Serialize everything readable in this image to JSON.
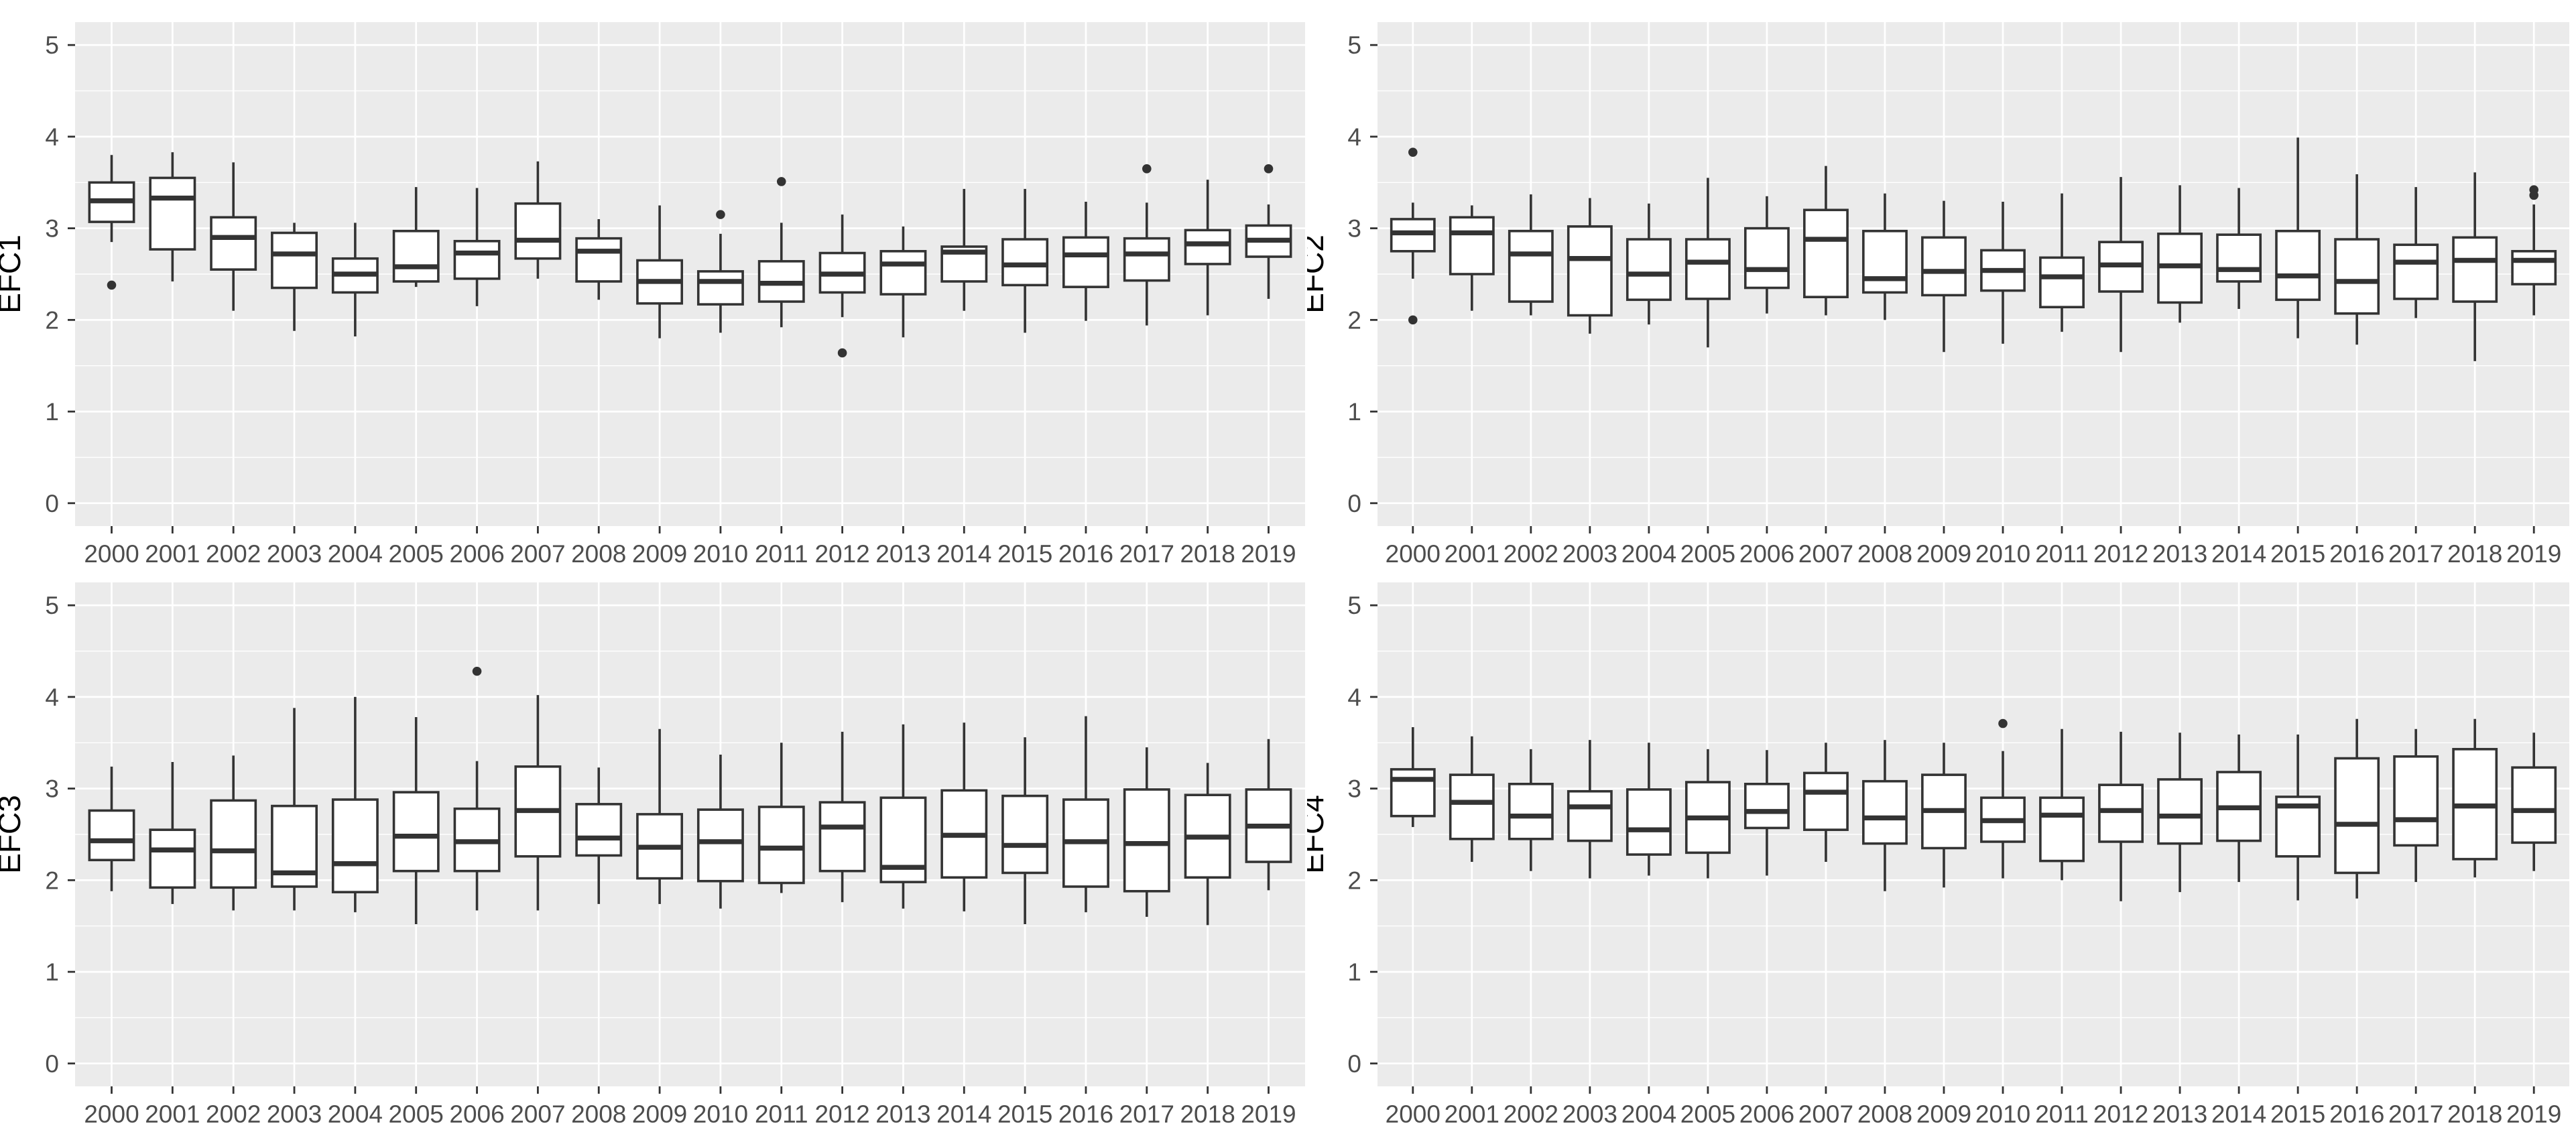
{
  "figure": {
    "kind": "2x2 grid of ggplot-style boxplot panels",
    "colors": {
      "page_background": "#ffffff",
      "panel_background": "#ebebeb",
      "gridline": "#ffffff",
      "box_stroke": "#333333",
      "box_fill": "#ffffff",
      "outlier": "#333333",
      "tick_mark": "#333333",
      "tick_label": "#4d4d4d",
      "axis_title": "#000000"
    }
  },
  "y_axis": {
    "tick_labels": [
      "0",
      "1",
      "2",
      "3",
      "4",
      "5"
    ],
    "tick_values": [
      0,
      1,
      2,
      3,
      4,
      5
    ],
    "minor_tick_values": [
      0.5,
      1.5,
      2.5,
      3.5,
      4.5
    ],
    "range": [
      -0.25,
      5.25
    ]
  },
  "x_axis": {
    "categories": [
      "2000",
      "2001",
      "2002",
      "2003",
      "2004",
      "2005",
      "2006",
      "2007",
      "2008",
      "2009",
      "2010",
      "2011",
      "2012",
      "2013",
      "2014",
      "2015",
      "2016",
      "2017",
      "2018",
      "2019"
    ]
  },
  "chart_data": [
    {
      "type": "boxplot",
      "ylabel": "EFC1",
      "categories": [
        "2000",
        "2001",
        "2002",
        "2003",
        "2004",
        "2005",
        "2006",
        "2007",
        "2008",
        "2009",
        "2010",
        "2011",
        "2012",
        "2013",
        "2014",
        "2015",
        "2016",
        "2017",
        "2018",
        "2019"
      ],
      "ylim": [
        -0.25,
        5.25
      ],
      "grid": true,
      "stats": [
        {
          "low": 2.85,
          "q1": 3.07,
          "median": 3.3,
          "q3": 3.5,
          "high": 3.8,
          "outliers": [
            2.38
          ]
        },
        {
          "low": 2.42,
          "q1": 2.77,
          "median": 3.33,
          "q3": 3.55,
          "high": 3.83,
          "outliers": []
        },
        {
          "low": 2.1,
          "q1": 2.55,
          "median": 2.9,
          "q3": 3.12,
          "high": 3.72,
          "outliers": []
        },
        {
          "low": 1.88,
          "q1": 2.35,
          "median": 2.72,
          "q3": 2.95,
          "high": 3.06,
          "outliers": []
        },
        {
          "low": 1.82,
          "q1": 2.3,
          "median": 2.5,
          "q3": 2.67,
          "high": 3.06,
          "outliers": []
        },
        {
          "low": 2.36,
          "q1": 2.42,
          "median": 2.58,
          "q3": 2.97,
          "high": 3.45,
          "outliers": []
        },
        {
          "low": 2.15,
          "q1": 2.45,
          "median": 2.73,
          "q3": 2.86,
          "high": 3.44,
          "outliers": []
        },
        {
          "low": 2.45,
          "q1": 2.67,
          "median": 2.87,
          "q3": 3.27,
          "high": 3.73,
          "outliers": []
        },
        {
          "low": 2.22,
          "q1": 2.42,
          "median": 2.75,
          "q3": 2.89,
          "high": 3.1,
          "outliers": []
        },
        {
          "low": 1.8,
          "q1": 2.18,
          "median": 2.42,
          "q3": 2.65,
          "high": 3.25,
          "outliers": []
        },
        {
          "low": 1.86,
          "q1": 2.17,
          "median": 2.42,
          "q3": 2.53,
          "high": 2.94,
          "outliers": [
            3.15
          ]
        },
        {
          "low": 1.92,
          "q1": 2.2,
          "median": 2.4,
          "q3": 2.64,
          "high": 3.06,
          "outliers": [
            3.51
          ]
        },
        {
          "low": 2.03,
          "q1": 2.3,
          "median": 2.5,
          "q3": 2.73,
          "high": 3.15,
          "outliers": [
            1.64
          ]
        },
        {
          "low": 1.81,
          "q1": 2.28,
          "median": 2.61,
          "q3": 2.75,
          "high": 3.02,
          "outliers": []
        },
        {
          "low": 2.1,
          "q1": 2.42,
          "median": 2.74,
          "q3": 2.8,
          "high": 3.43,
          "outliers": []
        },
        {
          "low": 1.86,
          "q1": 2.38,
          "median": 2.6,
          "q3": 2.88,
          "high": 3.43,
          "outliers": []
        },
        {
          "low": 1.99,
          "q1": 2.36,
          "median": 2.71,
          "q3": 2.9,
          "high": 3.29,
          "outliers": []
        },
        {
          "low": 1.94,
          "q1": 2.43,
          "median": 2.72,
          "q3": 2.89,
          "high": 3.28,
          "outliers": [
            3.65
          ]
        },
        {
          "low": 2.05,
          "q1": 2.61,
          "median": 2.83,
          "q3": 2.98,
          "high": 3.53,
          "outliers": []
        },
        {
          "low": 2.23,
          "q1": 2.69,
          "median": 2.87,
          "q3": 3.03,
          "high": 3.26,
          "outliers": [
            3.65
          ]
        }
      ]
    },
    {
      "type": "boxplot",
      "ylabel": "EFC2",
      "categories": [
        "2000",
        "2001",
        "2002",
        "2003",
        "2004",
        "2005",
        "2006",
        "2007",
        "2008",
        "2009",
        "2010",
        "2011",
        "2012",
        "2013",
        "2014",
        "2015",
        "2016",
        "2017",
        "2018",
        "2019"
      ],
      "ylim": [
        -0.25,
        5.25
      ],
      "grid": true,
      "stats": [
        {
          "low": 2.45,
          "q1": 2.75,
          "median": 2.95,
          "q3": 3.1,
          "high": 3.28,
          "outliers": [
            3.83,
            2.0
          ]
        },
        {
          "low": 2.1,
          "q1": 2.5,
          "median": 2.95,
          "q3": 3.12,
          "high": 3.25,
          "outliers": []
        },
        {
          "low": 2.05,
          "q1": 2.2,
          "median": 2.72,
          "q3": 2.97,
          "high": 3.37,
          "outliers": []
        },
        {
          "low": 1.85,
          "q1": 2.05,
          "median": 2.67,
          "q3": 3.02,
          "high": 3.33,
          "outliers": []
        },
        {
          "low": 1.95,
          "q1": 2.22,
          "median": 2.5,
          "q3": 2.88,
          "high": 3.27,
          "outliers": []
        },
        {
          "low": 1.7,
          "q1": 2.23,
          "median": 2.63,
          "q3": 2.88,
          "high": 3.55,
          "outliers": []
        },
        {
          "low": 2.07,
          "q1": 2.35,
          "median": 2.55,
          "q3": 3.0,
          "high": 3.35,
          "outliers": []
        },
        {
          "low": 2.05,
          "q1": 2.25,
          "median": 2.88,
          "q3": 3.2,
          "high": 3.68,
          "outliers": []
        },
        {
          "low": 2.0,
          "q1": 2.3,
          "median": 2.45,
          "q3": 2.97,
          "high": 3.38,
          "outliers": []
        },
        {
          "low": 1.65,
          "q1": 2.27,
          "median": 2.53,
          "q3": 2.9,
          "high": 3.3,
          "outliers": []
        },
        {
          "low": 1.74,
          "q1": 2.32,
          "median": 2.54,
          "q3": 2.76,
          "high": 3.29,
          "outliers": []
        },
        {
          "low": 1.87,
          "q1": 2.14,
          "median": 2.47,
          "q3": 2.68,
          "high": 3.38,
          "outliers": []
        },
        {
          "low": 1.65,
          "q1": 2.31,
          "median": 2.6,
          "q3": 2.85,
          "high": 3.56,
          "outliers": []
        },
        {
          "low": 1.97,
          "q1": 2.19,
          "median": 2.59,
          "q3": 2.94,
          "high": 3.47,
          "outliers": []
        },
        {
          "low": 2.12,
          "q1": 2.42,
          "median": 2.55,
          "q3": 2.93,
          "high": 3.44,
          "outliers": []
        },
        {
          "low": 1.8,
          "q1": 2.22,
          "median": 2.48,
          "q3": 2.97,
          "high": 3.99,
          "outliers": []
        },
        {
          "low": 1.73,
          "q1": 2.07,
          "median": 2.42,
          "q3": 2.88,
          "high": 3.59,
          "outliers": []
        },
        {
          "low": 2.02,
          "q1": 2.23,
          "median": 2.63,
          "q3": 2.82,
          "high": 3.45,
          "outliers": []
        },
        {
          "low": 1.55,
          "q1": 2.2,
          "median": 2.65,
          "q3": 2.9,
          "high": 3.61,
          "outliers": []
        },
        {
          "low": 2.05,
          "q1": 2.39,
          "median": 2.65,
          "q3": 2.75,
          "high": 3.26,
          "outliers": [
            3.36,
            3.42
          ]
        }
      ]
    },
    {
      "type": "boxplot",
      "ylabel": "EFC3",
      "categories": [
        "2000",
        "2001",
        "2002",
        "2003",
        "2004",
        "2005",
        "2006",
        "2007",
        "2008",
        "2009",
        "2010",
        "2011",
        "2012",
        "2013",
        "2014",
        "2015",
        "2016",
        "2017",
        "2018",
        "2019"
      ],
      "ylim": [
        -0.25,
        5.25
      ],
      "grid": true,
      "stats": [
        {
          "low": 1.88,
          "q1": 2.22,
          "median": 2.43,
          "q3": 2.76,
          "high": 3.24,
          "outliers": []
        },
        {
          "low": 1.74,
          "q1": 1.92,
          "median": 2.33,
          "q3": 2.55,
          "high": 3.29,
          "outliers": []
        },
        {
          "low": 1.67,
          "q1": 1.92,
          "median": 2.32,
          "q3": 2.87,
          "high": 3.36,
          "outliers": []
        },
        {
          "low": 1.67,
          "q1": 1.93,
          "median": 2.08,
          "q3": 2.81,
          "high": 3.88,
          "outliers": []
        },
        {
          "low": 1.65,
          "q1": 1.87,
          "median": 2.18,
          "q3": 2.88,
          "high": 4.0,
          "outliers": []
        },
        {
          "low": 1.52,
          "q1": 2.1,
          "median": 2.48,
          "q3": 2.96,
          "high": 3.78,
          "outliers": []
        },
        {
          "low": 1.67,
          "q1": 2.1,
          "median": 2.42,
          "q3": 2.78,
          "high": 3.3,
          "outliers": [
            4.28
          ]
        },
        {
          "low": 1.67,
          "q1": 2.26,
          "median": 2.76,
          "q3": 3.24,
          "high": 4.02,
          "outliers": []
        },
        {
          "low": 1.74,
          "q1": 2.27,
          "median": 2.46,
          "q3": 2.83,
          "high": 3.23,
          "outliers": []
        },
        {
          "low": 1.74,
          "q1": 2.02,
          "median": 2.36,
          "q3": 2.72,
          "high": 3.65,
          "outliers": []
        },
        {
          "low": 1.69,
          "q1": 1.99,
          "median": 2.42,
          "q3": 2.77,
          "high": 3.37,
          "outliers": []
        },
        {
          "low": 1.86,
          "q1": 1.97,
          "median": 2.35,
          "q3": 2.8,
          "high": 3.5,
          "outliers": []
        },
        {
          "low": 1.76,
          "q1": 2.1,
          "median": 2.58,
          "q3": 2.85,
          "high": 3.62,
          "outliers": []
        },
        {
          "low": 1.69,
          "q1": 1.98,
          "median": 2.14,
          "q3": 2.9,
          "high": 3.7,
          "outliers": []
        },
        {
          "low": 1.66,
          "q1": 2.03,
          "median": 2.49,
          "q3": 2.98,
          "high": 3.72,
          "outliers": []
        },
        {
          "low": 1.52,
          "q1": 2.08,
          "median": 2.38,
          "q3": 2.92,
          "high": 3.56,
          "outliers": []
        },
        {
          "low": 1.65,
          "q1": 1.93,
          "median": 2.42,
          "q3": 2.88,
          "high": 3.79,
          "outliers": []
        },
        {
          "low": 1.6,
          "q1": 1.88,
          "median": 2.4,
          "q3": 2.99,
          "high": 3.45,
          "outliers": []
        },
        {
          "low": 1.51,
          "q1": 2.03,
          "median": 2.47,
          "q3": 2.93,
          "high": 3.28,
          "outliers": []
        },
        {
          "low": 1.89,
          "q1": 2.2,
          "median": 2.59,
          "q3": 2.99,
          "high": 3.54,
          "outliers": []
        }
      ]
    },
    {
      "type": "boxplot",
      "ylabel": "EFC4",
      "categories": [
        "2000",
        "2001",
        "2002",
        "2003",
        "2004",
        "2005",
        "2006",
        "2007",
        "2008",
        "2009",
        "2010",
        "2011",
        "2012",
        "2013",
        "2014",
        "2015",
        "2016",
        "2017",
        "2018",
        "2019"
      ],
      "ylim": [
        -0.25,
        5.25
      ],
      "grid": true,
      "stats": [
        {
          "low": 2.58,
          "q1": 2.7,
          "median": 3.1,
          "q3": 3.21,
          "high": 3.67,
          "outliers": []
        },
        {
          "low": 2.2,
          "q1": 2.45,
          "median": 2.85,
          "q3": 3.15,
          "high": 3.57,
          "outliers": []
        },
        {
          "low": 2.1,
          "q1": 2.45,
          "median": 2.7,
          "q3": 3.05,
          "high": 3.43,
          "outliers": []
        },
        {
          "low": 2.02,
          "q1": 2.43,
          "median": 2.8,
          "q3": 2.97,
          "high": 3.53,
          "outliers": []
        },
        {
          "low": 2.05,
          "q1": 2.28,
          "median": 2.55,
          "q3": 2.99,
          "high": 3.5,
          "outliers": []
        },
        {
          "low": 2.02,
          "q1": 2.3,
          "median": 2.68,
          "q3": 3.07,
          "high": 3.43,
          "outliers": []
        },
        {
          "low": 2.05,
          "q1": 2.57,
          "median": 2.75,
          "q3": 3.05,
          "high": 3.42,
          "outliers": []
        },
        {
          "low": 2.2,
          "q1": 2.55,
          "median": 2.96,
          "q3": 3.17,
          "high": 3.5,
          "outliers": []
        },
        {
          "low": 1.88,
          "q1": 2.4,
          "median": 2.68,
          "q3": 3.08,
          "high": 3.53,
          "outliers": []
        },
        {
          "low": 1.92,
          "q1": 2.35,
          "median": 2.76,
          "q3": 3.15,
          "high": 3.5,
          "outliers": []
        },
        {
          "low": 2.02,
          "q1": 2.42,
          "median": 2.65,
          "q3": 2.9,
          "high": 3.41,
          "outliers": [
            3.71
          ]
        },
        {
          "low": 2.0,
          "q1": 2.21,
          "median": 2.71,
          "q3": 2.9,
          "high": 3.65,
          "outliers": []
        },
        {
          "low": 1.77,
          "q1": 2.42,
          "median": 2.76,
          "q3": 3.04,
          "high": 3.62,
          "outliers": []
        },
        {
          "low": 1.87,
          "q1": 2.4,
          "median": 2.7,
          "q3": 3.1,
          "high": 3.61,
          "outliers": []
        },
        {
          "low": 1.98,
          "q1": 2.43,
          "median": 2.79,
          "q3": 3.18,
          "high": 3.59,
          "outliers": []
        },
        {
          "low": 1.78,
          "q1": 2.26,
          "median": 2.81,
          "q3": 2.91,
          "high": 3.59,
          "outliers": []
        },
        {
          "low": 1.8,
          "q1": 2.08,
          "median": 2.61,
          "q3": 3.33,
          "high": 3.76,
          "outliers": []
        },
        {
          "low": 1.98,
          "q1": 2.38,
          "median": 2.66,
          "q3": 3.35,
          "high": 3.65,
          "outliers": []
        },
        {
          "low": 2.03,
          "q1": 2.23,
          "median": 2.81,
          "q3": 3.43,
          "high": 3.76,
          "outliers": []
        },
        {
          "low": 2.1,
          "q1": 2.41,
          "median": 2.76,
          "q3": 3.23,
          "high": 3.61,
          "outliers": []
        }
      ]
    }
  ]
}
